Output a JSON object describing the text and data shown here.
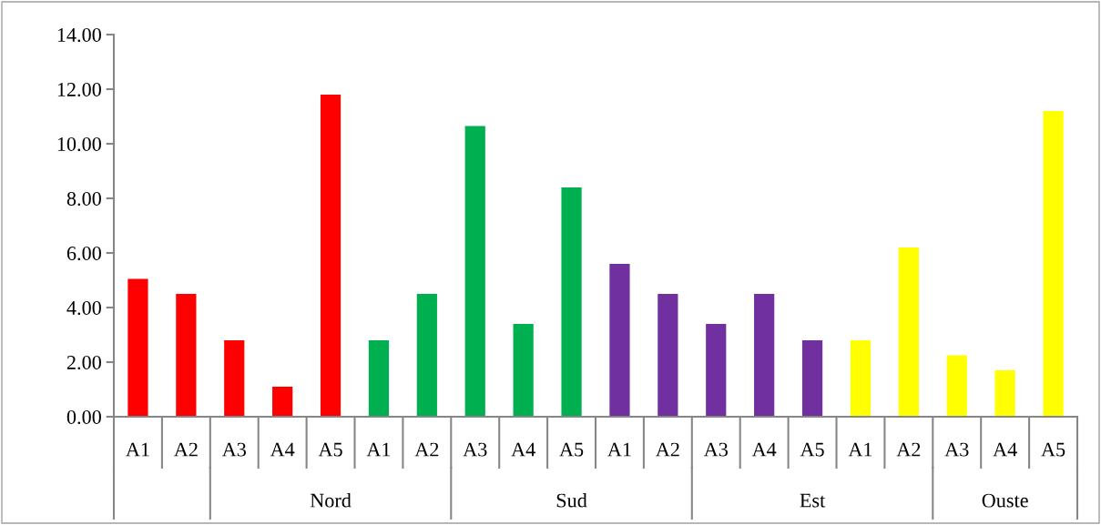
{
  "chart_data": {
    "type": "bar",
    "categories": [
      "A1",
      "A2",
      "A3",
      "A4",
      "A5",
      "A1",
      "A2",
      "A3",
      "A4",
      "A5",
      "A1",
      "A2",
      "A3",
      "A4",
      "A5",
      "A1",
      "A2",
      "A3",
      "A4",
      "A5"
    ],
    "values": [
      5.05,
      4.5,
      2.8,
      1.1,
      11.8,
      2.8,
      4.5,
      10.65,
      3.4,
      8.4,
      5.6,
      4.5,
      3.4,
      4.5,
      2.8,
      2.8,
      6.2,
      2.25,
      1.7,
      11.2
    ],
    "colors": [
      "#ff0000",
      "#ff0000",
      "#ff0000",
      "#ff0000",
      "#ff0000",
      "#00b050",
      "#00b050",
      "#00b050",
      "#00b050",
      "#00b050",
      "#7030a0",
      "#7030a0",
      "#7030a0",
      "#7030a0",
      "#7030a0",
      "#ffff00",
      "#ffff00",
      "#ffff00",
      "#ffff00",
      "#ffff00"
    ],
    "ylim": [
      0,
      14
    ],
    "yticks": [
      {
        "value": 0,
        "label": "0.00"
      },
      {
        "value": 2,
        "label": "2.00"
      },
      {
        "value": 4,
        "label": "4.00"
      },
      {
        "value": 6,
        "label": "6.00"
      },
      {
        "value": 8,
        "label": "8.00"
      },
      {
        "value": 10,
        "label": "10.00"
      },
      {
        "value": 12,
        "label": "12.00"
      },
      {
        "value": 14,
        "label": "14.00"
      }
    ],
    "annotations": [
      "Nord",
      "Sud",
      "Est",
      "Ouste"
    ],
    "grid": false,
    "legend": false
  }
}
